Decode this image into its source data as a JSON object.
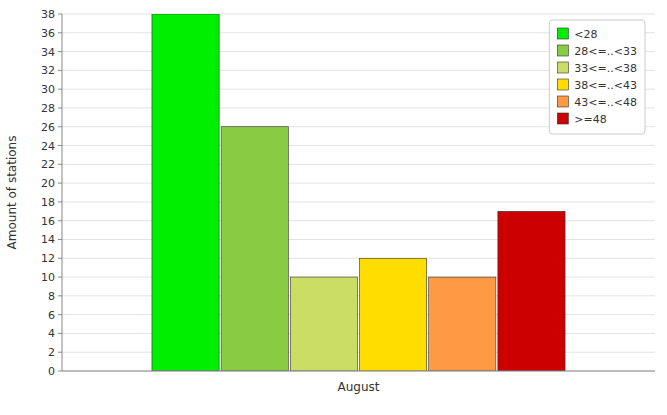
{
  "chart_data": {
    "type": "bar",
    "categories": [
      "August"
    ],
    "series": [
      {
        "name": "<28",
        "color": "#00ee00",
        "values": [
          38
        ]
      },
      {
        "name": "28<=..<33",
        "color": "#88cc44",
        "values": [
          26
        ]
      },
      {
        "name": "33<=..<38",
        "color": "#ccdd66",
        "values": [
          10
        ]
      },
      {
        "name": "38<=..<43",
        "color": "#ffdd00",
        "values": [
          12
        ]
      },
      {
        "name": "43<=..<48",
        "color": "#ff9944",
        "values": [
          10
        ]
      },
      {
        "name": ">=48",
        "color": "#cc0000",
        "values": [
          17
        ]
      }
    ],
    "ylabel": "Amount of stations",
    "ylim": [
      0,
      38
    ],
    "yticks": [
      0,
      2,
      4,
      6,
      8,
      10,
      12,
      14,
      16,
      18,
      20,
      22,
      24,
      26,
      28,
      30,
      32,
      34,
      36,
      38
    ],
    "grid": true,
    "legend": "upper right"
  }
}
